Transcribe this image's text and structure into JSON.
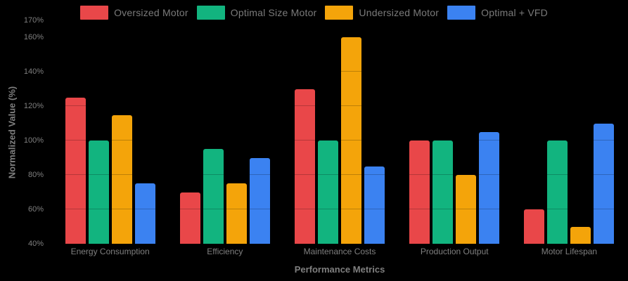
{
  "colors": {
    "background": "#000000",
    "text_muted": "#7f7f7f",
    "legend_text": "#7a7a7a"
  },
  "axes": {
    "y_title": "Normalized Value (%)",
    "x_title": "Performance Metrics"
  },
  "chart_data": {
    "type": "bar",
    "title": "",
    "xlabel": "Performance Metrics",
    "ylabel": "Normalized Value (%)",
    "categories": [
      "Energy Consumption",
      "Efficiency",
      "Maintenance Costs",
      "Production Output",
      "Motor Lifespan"
    ],
    "series": [
      {
        "name": "Oversized Motor",
        "color": "#E94749",
        "values": [
          125,
          70,
          130,
          100,
          60
        ]
      },
      {
        "name": "Optimal Size Motor",
        "color": "#12B47F",
        "values": [
          100,
          95,
          100,
          100,
          100
        ]
      },
      {
        "name": "Undersized Motor",
        "color": "#F4A40A",
        "values": [
          115,
          75,
          160,
          80,
          50
        ]
      },
      {
        "name": "Optimal + VFD",
        "color": "#3B82F1",
        "values": [
          75,
          90,
          85,
          105,
          110
        ]
      }
    ],
    "ylim": [
      40,
      170
    ],
    "yticks": [
      40,
      60,
      80,
      100,
      120,
      140,
      160,
      170
    ],
    "ytick_suffix": "%",
    "grid": true,
    "legend_position": "top"
  }
}
